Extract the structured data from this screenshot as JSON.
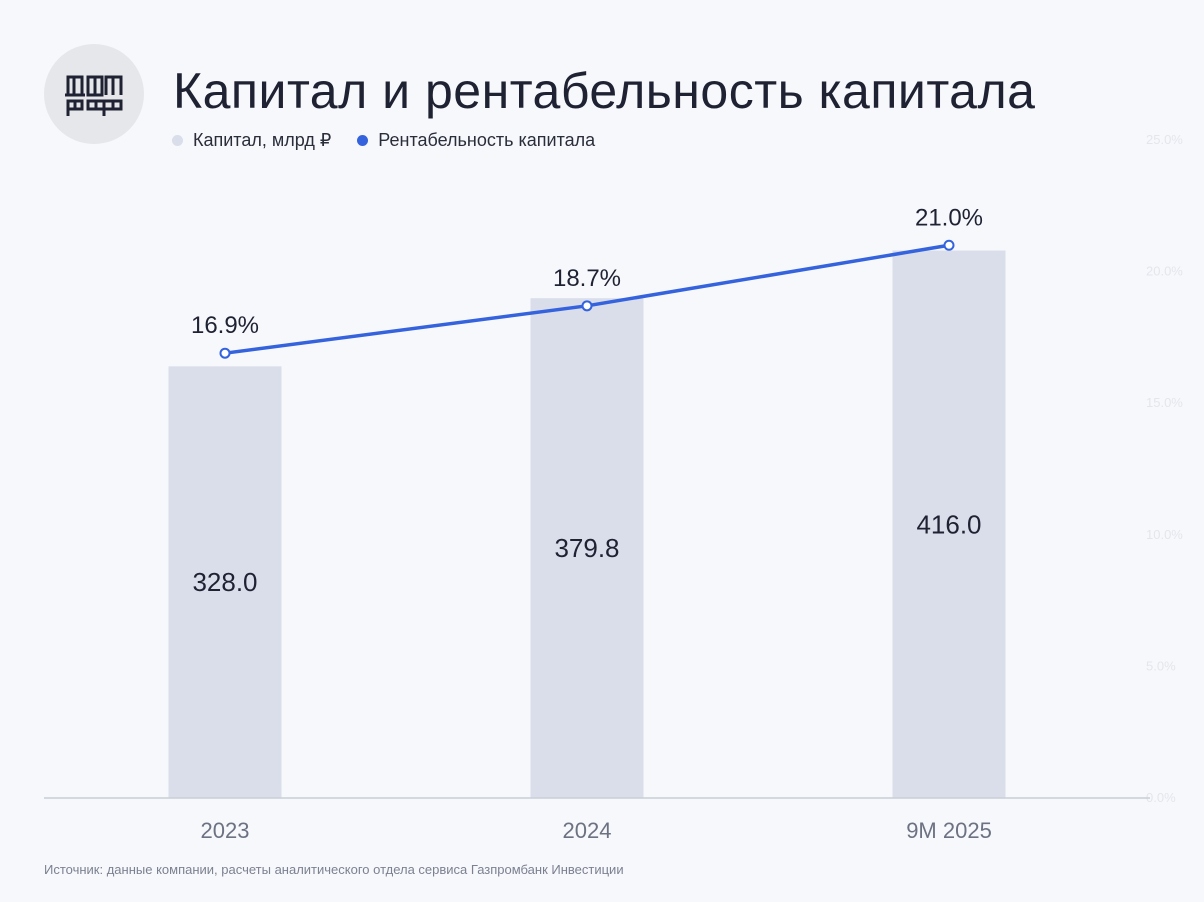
{
  "header": {
    "title": "Капитал и рентабельность капитала",
    "logo_text": "ДОМ РФ"
  },
  "legend": {
    "bar_label": "Капитал, млрд ₽",
    "line_label": "Рентабельность капитала"
  },
  "source": "Источник: данные компании, расчеты аналитического отдела сервиса Газпромбанк Инвестиции",
  "colors": {
    "bar": "#d9deea",
    "line": "#3563dd",
    "axis": "#c9cdd6",
    "text": "#1f2233",
    "tick": "#6c7282",
    "right_axis": "#e3e6ec"
  },
  "chart_data": {
    "type": "bar",
    "title": "Капитал и рентабельность капитала",
    "categories": [
      "2023",
      "2024",
      "9M 2025"
    ],
    "series": [
      {
        "name": "Капитал, млрд ₽",
        "type": "bar",
        "values": [
          328.0,
          379.8,
          416.0
        ],
        "labels": [
          "328.0",
          "379.8",
          "416.0"
        ]
      },
      {
        "name": "Рентабельность капитала",
        "type": "line",
        "values": [
          16.9,
          18.7,
          21.0
        ],
        "labels": [
          "16.9%",
          "18.7%",
          "21.0%"
        ]
      }
    ],
    "bar_ylim": [
      0,
      500
    ],
    "y2lim": [
      0,
      25
    ],
    "y2_ticks": [
      "0.0%",
      "5.0%",
      "10.0%",
      "15.0%",
      "20.0%",
      "25.0%"
    ],
    "grid": false,
    "legend_position": "top-left"
  }
}
